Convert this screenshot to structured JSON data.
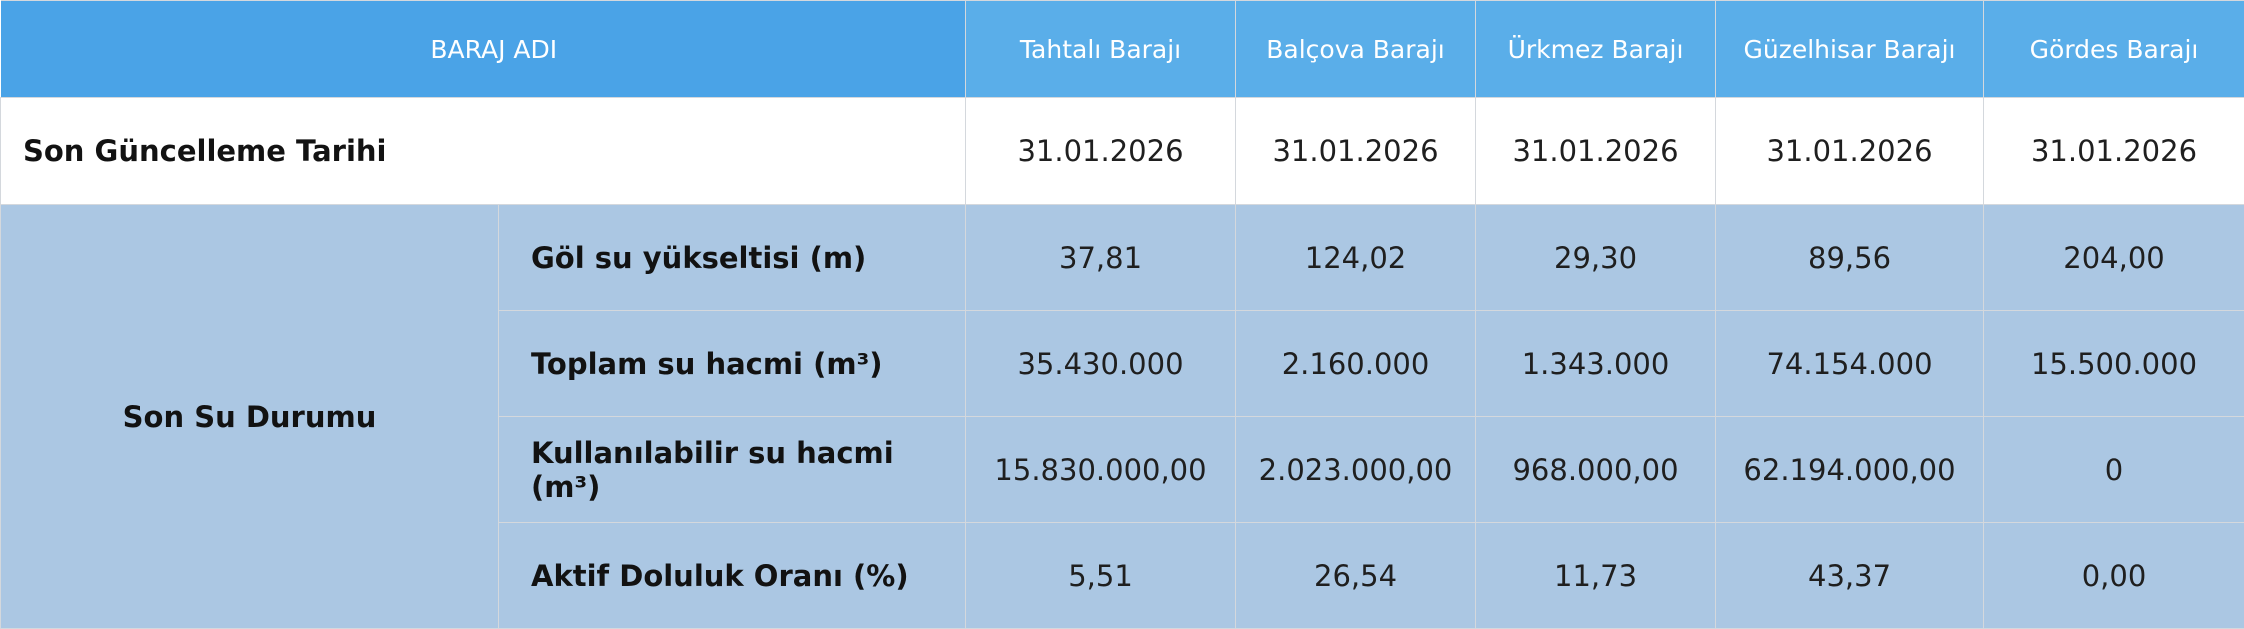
{
  "header": {
    "name_label": "BARAJ ADI",
    "dams": [
      "Tahtalı Barajı",
      "Balçova Barajı",
      "Ürkmez Barajı",
      "Güzelhisar Barajı",
      "Gördes Barajı"
    ]
  },
  "update_row": {
    "label": "Son Güncelleme Tarihi",
    "values": [
      "31.01.2026",
      "31.01.2026",
      "31.01.2026",
      "31.01.2026",
      "31.01.2026"
    ]
  },
  "water_status": {
    "group_label": "Son Su Durumu",
    "metrics": [
      {
        "label": "Göl su yükseltisi (m)",
        "values": [
          "37,81",
          "124,02",
          "29,30",
          "89,56",
          "204,00"
        ]
      },
      {
        "label": "Toplam su hacmi (m³)",
        "values": [
          "35.430.000",
          "2.160.000",
          "1.343.000",
          "74.154.000",
          "15.500.000"
        ]
      },
      {
        "label": "Kullanılabilir su hacmi (m³)",
        "values": [
          "15.830.000,00",
          "2.023.000,00",
          "968.000,00",
          "62.194.000,00",
          "0"
        ]
      },
      {
        "label": "Aktif Doluluk Oranı (%)",
        "values": [
          "5,51",
          "26,54",
          "11,73",
          "43,37",
          "0,00"
        ]
      }
    ]
  },
  "colors": {
    "header_primary": "#4aa3e7",
    "header_dam": "#5aaee9",
    "body_blue": "#abc7e3",
    "border": "#d4d8dd"
  }
}
